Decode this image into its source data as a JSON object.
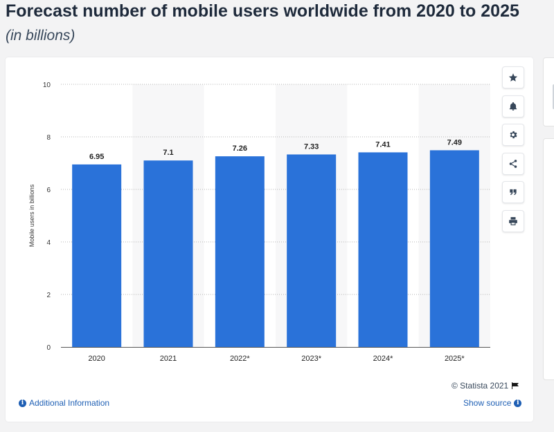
{
  "header": {
    "title": "Forecast number of mobile users worldwide from 2020 to 2025",
    "subtitle": "(in billions)"
  },
  "chart_data": {
    "type": "bar",
    "categories": [
      "2020",
      "2021",
      "2022*",
      "2023*",
      "2024*",
      "2025*"
    ],
    "values": [
      6.95,
      7.1,
      7.26,
      7.33,
      7.41,
      7.49
    ],
    "value_labels": [
      "6.95",
      "7.1",
      "7.26",
      "7.33",
      "7.41",
      "7.49"
    ],
    "title": "",
    "xlabel": "",
    "ylabel": "Mobile users in billions",
    "ylim": [
      0,
      10
    ],
    "yticks": [
      "0",
      "2",
      "4",
      "6",
      "8",
      "10"
    ],
    "grid": true,
    "bar_color": "#2a72d9"
  },
  "toolbar": {
    "buttons": [
      {
        "icon": "star-icon"
      },
      {
        "icon": "bell-icon"
      },
      {
        "icon": "gear-icon"
      },
      {
        "icon": "share-icon"
      },
      {
        "icon": "quote-icon"
      },
      {
        "icon": "print-icon"
      }
    ]
  },
  "footer": {
    "copyright": "© Statista 2021",
    "additional_info": "Additional Information",
    "show_source": "Show source"
  },
  "colors": {
    "accent": "#1e5fb4",
    "bar": "#2a72d9"
  }
}
